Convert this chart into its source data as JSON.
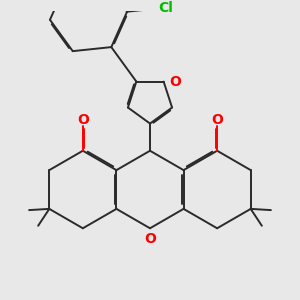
{
  "bg_color": "#e8e8e8",
  "bond_color": "#2a2a2a",
  "oxygen_color": "#ff0000",
  "chlorine_color": "#00bb00",
  "bond_width": 1.4,
  "font_size": 9,
  "xlim": [
    0,
    10
  ],
  "ylim": [
    0,
    10
  ]
}
